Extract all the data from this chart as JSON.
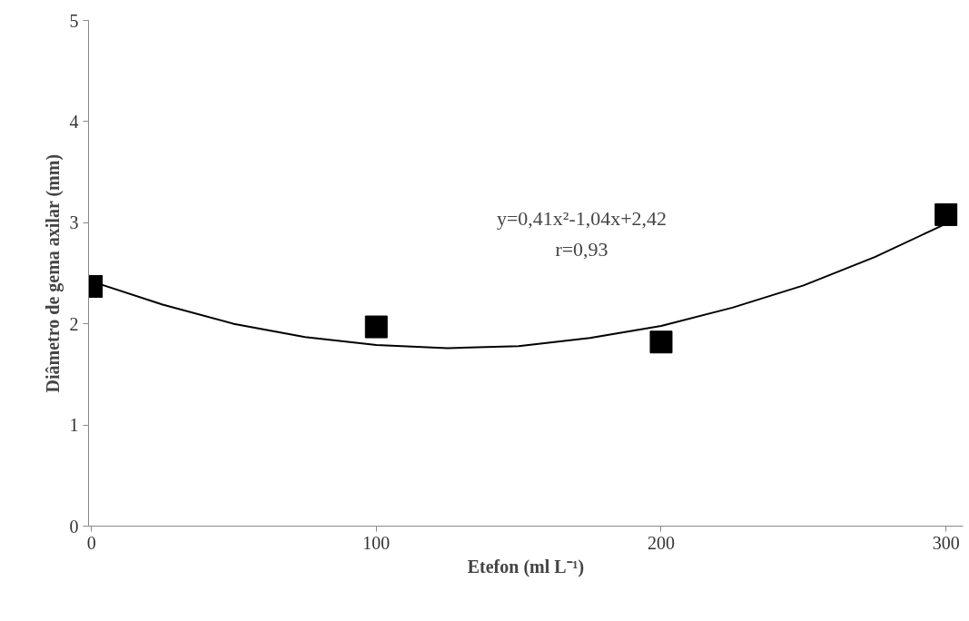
{
  "chart_data": {
    "type": "scatter",
    "xlabel": "Etefon (ml L⁻¹)",
    "ylabel": "Diâmetro de gema axilar (mm)",
    "x": [
      0,
      100,
      200,
      300
    ],
    "series": [
      {
        "color": "#000000",
        "marker": "square",
        "values": [
          2.37,
          1.97,
          1.82,
          3.08
        ]
      },
      {
        "type": "line",
        "color": "#000000",
        "x": [
          0,
          25,
          50,
          75,
          100,
          125,
          150,
          175,
          200,
          225,
          250,
          275,
          300
        ],
        "values": [
          2.42,
          2.19,
          2.0,
          1.87,
          1.79,
          1.76,
          1.78,
          1.86,
          1.98,
          2.16,
          2.38,
          2.66,
          2.99
        ]
      }
    ],
    "annotations": [
      "y=0,41x²-1,04x+2,42",
      "r=0,93"
    ],
    "xlim": [
      -1,
      306
    ],
    "ylim": [
      0,
      5
    ],
    "xticks": [
      0,
      100,
      200,
      300
    ],
    "yticks": [
      0,
      1,
      2,
      3,
      4,
      5
    ],
    "grid": false
  }
}
